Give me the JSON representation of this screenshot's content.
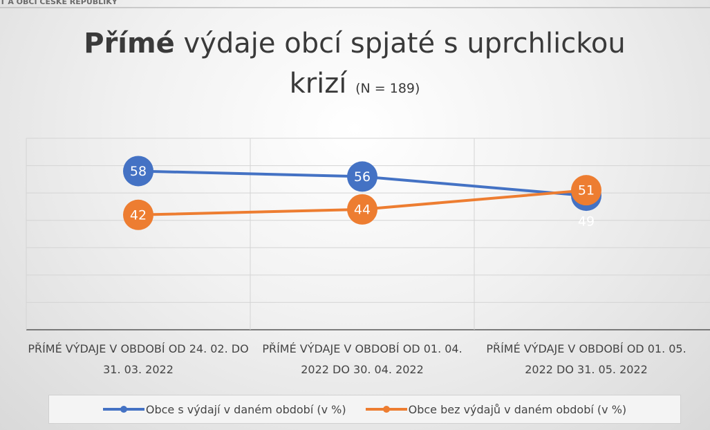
{
  "header": "T A OBCÍ ČESKÉ REPUBLIKY",
  "chart_data": {
    "type": "line",
    "title_bold": "Přímé",
    "title": "výdaje obcí spjaté s uprchlickou krizí",
    "subtitle": "(N = 189)",
    "categories": [
      "PŘÍMÉ VÝDAJE V OBDOBÍ OD 24. 02. DO 31. 03. 2022",
      "PŘÍMÉ VÝDAJE V OBDOBÍ OD 01. 04. 2022 DO 30. 04. 2022",
      "PŘÍMÉ VÝDAJE V OBDOBÍ OD 01. 05. 2022 DO 31. 05. 2022"
    ],
    "series": [
      {
        "name": "Obce s výdají v daném období (v %)",
        "color": "#4472c4",
        "values": [
          58,
          56,
          49
        ]
      },
      {
        "name": "Obce bez výdajů v daném období (v %)",
        "color": "#ed7d31",
        "values": [
          42,
          44,
          51
        ]
      }
    ],
    "ylim": [
      0,
      70
    ],
    "yticks": [
      0,
      10,
      20,
      30,
      40,
      50,
      60,
      70
    ],
    "grid": true,
    "legend": "bottom"
  }
}
